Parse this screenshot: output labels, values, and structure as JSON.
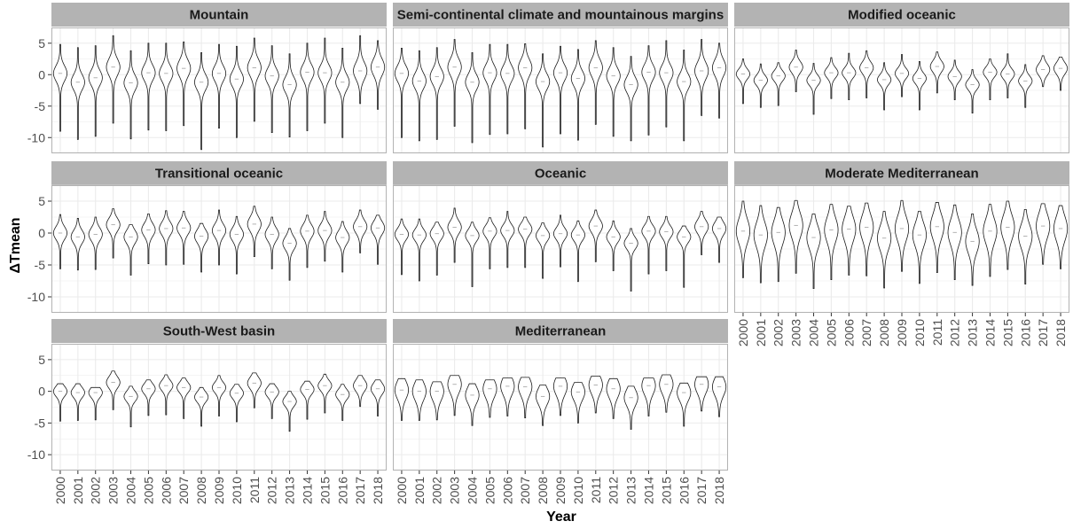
{
  "chart_data": {
    "type": "violin",
    "xlabel": "Year",
    "ylabel": "ΔTmean",
    "ylim": [
      -12.5,
      7.5
    ],
    "yticks": [
      5,
      0,
      -5,
      -10
    ],
    "years": [
      "2000",
      "2001",
      "2002",
      "2003",
      "2004",
      "2005",
      "2006",
      "2007",
      "2008",
      "2009",
      "2010",
      "2011",
      "2012",
      "2013",
      "2014",
      "2015",
      "2016",
      "2017",
      "2018"
    ],
    "grid": true,
    "colors": {
      "panel_bg": "#ffffff",
      "grid": "#ebebeb",
      "strip_bg": "#b3b3b3",
      "border": "#b3b3b3",
      "violin": "#1a1a1a"
    },
    "panels": [
      {
        "title": "Mountain",
        "medians": [
          0.2,
          -1.2,
          -0.5,
          1.2,
          -1.3,
          0.3,
          0.2,
          1.0,
          -1.2,
          0.2,
          -0.7,
          1.1,
          -0.2,
          -1.6,
          0.4,
          0.3,
          -1.2,
          0.6,
          1.2
        ],
        "maxs": [
          4.8,
          4.3,
          4.6,
          6.2,
          3.8,
          5.0,
          5.0,
          5.2,
          3.5,
          4.8,
          4.5,
          5.8,
          4.6,
          3.3,
          5.0,
          5.8,
          4.2,
          6.2,
          5.4
        ],
        "mins": [
          -9,
          -10.3,
          -9.8,
          -7.7,
          -10.2,
          -8.8,
          -8.9,
          -8.1,
          -11.9,
          -8.5,
          -10,
          -7.4,
          -9.2,
          -9.9,
          -8.9,
          -7.7,
          -10,
          -4.6,
          -5.5
        ],
        "spread": [
          1.2,
          1.2,
          1.2,
          1.3,
          1.2,
          1.2,
          1.2,
          1.3,
          1.2,
          1.2,
          1.2,
          1.3,
          1.2,
          1.2,
          1.2,
          1.2,
          1.2,
          1.3,
          1.3
        ]
      },
      {
        "title": "Semi-continental climate and mountainous margins",
        "medians": [
          0.2,
          -1.0,
          -0.3,
          1.2,
          -1.2,
          0.3,
          0.2,
          1.1,
          -1.1,
          0.3,
          -0.6,
          1.1,
          -0.2,
          -1.6,
          0.4,
          0.3,
          -1.1,
          0.6,
          1.1
        ],
        "maxs": [
          4.2,
          3.8,
          4.3,
          5.6,
          3.5,
          4.8,
          4.8,
          4.9,
          3.3,
          4.5,
          4.0,
          5.4,
          4.3,
          2.9,
          4.6,
          5.4,
          3.9,
          5.6,
          5.0
        ],
        "mins": [
          -10,
          -10.5,
          -10.3,
          -8.2,
          -10.8,
          -9.5,
          -9.4,
          -8.6,
          -11.5,
          -9.4,
          -10.4,
          -7.9,
          -9.8,
          -10.5,
          -9.6,
          -8.3,
          -10.5,
          -6.5,
          -6.9
        ],
        "spread": [
          1.2,
          1.2,
          1.2,
          1.3,
          1.2,
          1.2,
          1.2,
          1.3,
          1.2,
          1.2,
          1.2,
          1.3,
          1.2,
          1.2,
          1.2,
          1.2,
          1.2,
          1.3,
          1.3
        ]
      },
      {
        "title": "Modified oceanic",
        "medians": [
          0.1,
          -0.9,
          -0.2,
          1.2,
          -0.9,
          0.3,
          0.3,
          1.1,
          -0.8,
          0.2,
          -0.6,
          1.3,
          -0.3,
          -1.6,
          0.4,
          0.1,
          -1.0,
          0.8,
          1.0
        ],
        "maxs": [
          2.5,
          1.7,
          1.9,
          3.9,
          1.8,
          2.7,
          3.4,
          3.8,
          1.9,
          3.2,
          2.1,
          3.6,
          2.3,
          0.8,
          2.5,
          3.3,
          1.6,
          3.0,
          2.8
        ],
        "mins": [
          -4.6,
          -5.2,
          -4.9,
          -2.7,
          -6.3,
          -3.8,
          -4.0,
          -3.7,
          -5.6,
          -3.5,
          -5.6,
          -2.9,
          -4.0,
          -6.1,
          -4.0,
          -3.7,
          -5.2,
          -1.9,
          -2.5
        ],
        "spread": [
          0.8,
          0.8,
          0.8,
          0.9,
          0.8,
          0.8,
          0.8,
          0.9,
          0.8,
          0.8,
          0.8,
          0.9,
          0.8,
          0.8,
          0.8,
          0.8,
          0.8,
          0.9,
          0.9
        ]
      },
      {
        "title": "Transitional oceanic",
        "medians": [
          0.0,
          -0.6,
          -0.2,
          1.3,
          -0.6,
          0.5,
          0.7,
          0.8,
          -0.5,
          0.4,
          -0.2,
          1.4,
          -0.2,
          -1.6,
          0.3,
          0.4,
          -0.7,
          1.0,
          0.8
        ],
        "maxs": [
          2.9,
          2.3,
          2.5,
          3.8,
          1.3,
          3.0,
          3.5,
          3.4,
          1.5,
          3.6,
          2.6,
          4.2,
          2.5,
          0.7,
          2.8,
          3.4,
          1.8,
          3.6,
          2.8
        ],
        "mins": [
          -5.6,
          -5.8,
          -5.7,
          -3.9,
          -6.6,
          -4.8,
          -5.0,
          -4.9,
          -6.1,
          -5.0,
          -6.4,
          -3.7,
          -5.6,
          -7.4,
          -5.4,
          -4.4,
          -6.1,
          -3.1,
          -4.9
        ],
        "spread": [
          1.0,
          1.0,
          1.0,
          1.0,
          1.0,
          1.0,
          1.0,
          1.0,
          1.0,
          1.0,
          1.0,
          1.1,
          1.0,
          1.0,
          1.0,
          1.0,
          1.0,
          1.0,
          1.0
        ]
      },
      {
        "title": "Oceanic",
        "medians": [
          -0.2,
          -0.3,
          -0.1,
          0.9,
          -0.4,
          0.3,
          0.4,
          0.6,
          -0.4,
          -0.1,
          -0.3,
          1.1,
          -0.6,
          -1.6,
          0.3,
          0.2,
          -0.6,
          1.0,
          0.7
        ],
        "maxs": [
          2.2,
          2.2,
          1.7,
          3.9,
          1.7,
          2.4,
          3.4,
          2.5,
          1.6,
          2.8,
          1.9,
          3.6,
          1.9,
          0.7,
          2.6,
          2.6,
          1.1,
          3.4,
          2.5
        ],
        "mins": [
          -6.5,
          -7.5,
          -6.6,
          -4.6,
          -8.4,
          -5.6,
          -5.4,
          -5.4,
          -7.1,
          -5.3,
          -7.6,
          -4.5,
          -5.9,
          -9.1,
          -6.4,
          -5.9,
          -8.5,
          -3.4,
          -4.6
        ],
        "spread": [
          0.9,
          0.9,
          0.9,
          1.0,
          0.9,
          0.9,
          0.9,
          0.9,
          0.9,
          0.9,
          0.9,
          1.0,
          0.9,
          0.9,
          0.9,
          0.9,
          0.9,
          1.0,
          1.0
        ]
      },
      {
        "title": "Moderate Mediterranean",
        "medians": [
          0.3,
          -0.3,
          0.1,
          1.2,
          -0.7,
          0.5,
          0.6,
          0.9,
          -0.8,
          0.7,
          -0.3,
          1.0,
          0.1,
          -1.3,
          0.3,
          0.9,
          -0.5,
          1.1,
          0.7
        ],
        "maxs": [
          5.0,
          4.3,
          4.0,
          5.1,
          3.0,
          4.5,
          4.2,
          4.7,
          3.4,
          5.1,
          3.4,
          4.8,
          4.4,
          3.0,
          4.5,
          5.0,
          3.7,
          4.6,
          4.3
        ],
        "mins": [
          -7.0,
          -7.8,
          -7.6,
          -6.3,
          -8.7,
          -7.3,
          -6.6,
          -6.7,
          -8.6,
          -6.0,
          -7.9,
          -6.2,
          -7.3,
          -8.2,
          -6.8,
          -5.7,
          -8.0,
          -4.9,
          -5.6
        ],
        "spread": [
          1.9,
          1.9,
          1.9,
          1.9,
          1.8,
          1.9,
          1.9,
          1.9,
          1.8,
          1.9,
          1.8,
          1.9,
          1.9,
          1.8,
          1.9,
          1.9,
          1.8,
          1.9,
          1.9
        ]
      },
      {
        "title": "South-West basin",
        "medians": [
          0.0,
          -0.2,
          -0.2,
          1.4,
          -0.8,
          0.4,
          0.9,
          0.6,
          -0.9,
          0.6,
          -0.3,
          1.3,
          -0.1,
          -1.6,
          0.3,
          0.9,
          -0.5,
          0.9,
          0.4
        ],
        "maxs": [
          1.2,
          1.2,
          0.6,
          3.2,
          0.8,
          1.8,
          2.6,
          2.1,
          0.6,
          2.5,
          1.1,
          2.9,
          1.2,
          0.0,
          1.6,
          2.7,
          1.1,
          2.5,
          1.8
        ],
        "mins": [
          -4.7,
          -4.6,
          -4.5,
          -2.9,
          -5.6,
          -3.8,
          -3.7,
          -4.3,
          -5.5,
          -3.9,
          -4.8,
          -2.6,
          -4.3,
          -6.3,
          -4.4,
          -3.4,
          -4.6,
          -2.4,
          -3.9
        ],
        "spread": [
          0.8,
          0.8,
          0.8,
          0.9,
          0.8,
          0.8,
          0.8,
          0.8,
          0.8,
          0.8,
          0.8,
          0.9,
          0.8,
          0.8,
          0.8,
          0.8,
          0.8,
          0.9,
          0.9
        ]
      },
      {
        "title": "Mediterranean",
        "medians": [
          0.2,
          0.0,
          0.0,
          1.1,
          -0.6,
          0.4,
          0.8,
          0.7,
          -0.8,
          0.8,
          -0.1,
          1.0,
          0.4,
          -1.0,
          0.9,
          1.1,
          -0.2,
          1.1,
          0.7
        ],
        "maxs": [
          2.0,
          1.8,
          1.5,
          2.5,
          1.2,
          1.8,
          2.1,
          2.2,
          1.0,
          2.1,
          1.4,
          2.4,
          2.0,
          0.8,
          2.1,
          2.6,
          1.3,
          2.3,
          2.3
        ],
        "mins": [
          -4.6,
          -4.6,
          -4.5,
          -3.8,
          -5.4,
          -4.1,
          -3.9,
          -4.2,
          -5.4,
          -3.8,
          -5.0,
          -3.4,
          -4.3,
          -6.0,
          -3.9,
          -3.3,
          -5.5,
          -3.1,
          -4.0
        ],
        "spread": [
          1.4,
          1.4,
          1.4,
          1.4,
          1.3,
          1.4,
          1.4,
          1.4,
          1.3,
          1.4,
          1.3,
          1.4,
          1.4,
          1.3,
          1.4,
          1.4,
          1.3,
          1.4,
          1.4
        ]
      }
    ]
  }
}
